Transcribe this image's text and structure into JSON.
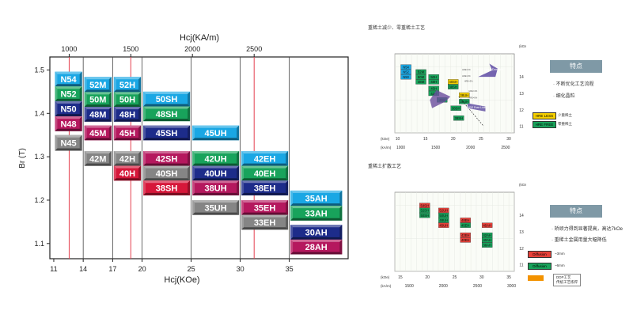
{
  "chart_data": [
    {
      "type": "bar",
      "title": "Hcj(KA/m)",
      "xlabel": "Hcj(KOe)",
      "ylabel": "Br (T)",
      "xlim": [
        10.6,
        41.0
      ],
      "ylim": [
        1.065,
        1.53
      ],
      "x_ticks": [
        "11",
        "14",
        "17",
        "20",
        "25",
        "30",
        "35"
      ],
      "x_tick_values": [
        11,
        14,
        17,
        20,
        25,
        30,
        35
      ],
      "top_ticks": [
        "1000",
        "1500",
        "2000",
        "2500"
      ],
      "top_tick_values_koe": [
        12.57,
        18.85,
        25.13,
        31.42
      ],
      "y_ticks": [
        "1.1",
        "1.2",
        "1.3",
        "1.4",
        "1.5"
      ],
      "y_tick_values": [
        1.1,
        1.2,
        1.3,
        1.4,
        1.5
      ],
      "red_lines_koe": [
        12.57,
        18.85,
        31.42
      ],
      "grades": [
        {
          "label": "N54",
          "x0": 11.0,
          "x1": 14.0,
          "br_top": 1.496,
          "br_bottom": 1.462,
          "color": "#1aa7e4"
        },
        {
          "label": "N52",
          "x0": 11.0,
          "x1": 14.0,
          "br_top": 1.462,
          "br_bottom": 1.428,
          "color": "#18a35b"
        },
        {
          "label": "N50",
          "x0": 11.0,
          "x1": 14.0,
          "br_top": 1.428,
          "br_bottom": 1.393,
          "color": "#1d2c8a"
        },
        {
          "label": "N48",
          "x0": 11.0,
          "x1": 14.0,
          "br_top": 1.393,
          "br_bottom": 1.359,
          "color": "#b5185e"
        },
        {
          "label": "N45",
          "x0": 11.0,
          "x1": 14.0,
          "br_top": 1.35,
          "br_bottom": 1.314,
          "color": "#858585"
        },
        {
          "label": "52M",
          "x0": 14.0,
          "x1": 17.0,
          "br_top": 1.484,
          "br_bottom": 1.449,
          "color": "#1aa7e4"
        },
        {
          "label": "50M",
          "x0": 14.0,
          "x1": 17.0,
          "br_top": 1.449,
          "br_bottom": 1.415,
          "color": "#18a35b"
        },
        {
          "label": "48M",
          "x0": 14.0,
          "x1": 17.0,
          "br_top": 1.415,
          "br_bottom": 1.381,
          "color": "#1d2c8a"
        },
        {
          "label": "45M",
          "x0": 14.0,
          "x1": 17.0,
          "br_top": 1.372,
          "br_bottom": 1.338,
          "color": "#b5185e"
        },
        {
          "label": "42M",
          "x0": 14.0,
          "x1": 17.0,
          "br_top": 1.313,
          "br_bottom": 1.279,
          "color": "#858585"
        },
        {
          "label": "52H",
          "x0": 17.0,
          "x1": 20.0,
          "br_top": 1.484,
          "br_bottom": 1.449,
          "color": "#1aa7e4"
        },
        {
          "label": "50H",
          "x0": 17.0,
          "x1": 20.0,
          "br_top": 1.449,
          "br_bottom": 1.415,
          "color": "#18a35b"
        },
        {
          "label": "48H",
          "x0": 17.0,
          "x1": 20.0,
          "br_top": 1.415,
          "br_bottom": 1.381,
          "color": "#1d2c8a"
        },
        {
          "label": "45H",
          "x0": 17.0,
          "x1": 20.0,
          "br_top": 1.372,
          "br_bottom": 1.338,
          "color": "#b5185e"
        },
        {
          "label": "42H",
          "x0": 17.0,
          "x1": 20.0,
          "br_top": 1.313,
          "br_bottom": 1.279,
          "color": "#858585"
        },
        {
          "label": "40H",
          "x0": 17.0,
          "x1": 20.0,
          "br_top": 1.279,
          "br_bottom": 1.245,
          "color": "#d6173a"
        },
        {
          "label": "50SH",
          "x0": 20.0,
          "x1": 25.0,
          "br_top": 1.45,
          "br_bottom": 1.416,
          "color": "#1aa7e4"
        },
        {
          "label": "48SH",
          "x0": 20.0,
          "x1": 25.0,
          "br_top": 1.416,
          "br_bottom": 1.382,
          "color": "#18a35b"
        },
        {
          "label": "45SH",
          "x0": 20.0,
          "x1": 25.0,
          "br_top": 1.372,
          "br_bottom": 1.338,
          "color": "#1d2c8a"
        },
        {
          "label": "42SH",
          "x0": 20.0,
          "x1": 25.0,
          "br_top": 1.313,
          "br_bottom": 1.279,
          "color": "#b5185e"
        },
        {
          "label": "40SH",
          "x0": 20.0,
          "x1": 25.0,
          "br_top": 1.279,
          "br_bottom": 1.245,
          "color": "#858585"
        },
        {
          "label": "38SH",
          "x0": 20.0,
          "x1": 25.0,
          "br_top": 1.245,
          "br_bottom": 1.211,
          "color": "#d6173a"
        },
        {
          "label": "45UH",
          "x0": 25.0,
          "x1": 30.0,
          "br_top": 1.372,
          "br_bottom": 1.338,
          "color": "#1aa7e4"
        },
        {
          "label": "42UH",
          "x0": 25.0,
          "x1": 30.0,
          "br_top": 1.313,
          "br_bottom": 1.279,
          "color": "#18a35b"
        },
        {
          "label": "40UH",
          "x0": 25.0,
          "x1": 30.0,
          "br_top": 1.279,
          "br_bottom": 1.245,
          "color": "#1d2c8a"
        },
        {
          "label": "38UH",
          "x0": 25.0,
          "x1": 30.0,
          "br_top": 1.245,
          "br_bottom": 1.211,
          "color": "#b5185e"
        },
        {
          "label": "35UH",
          "x0": 25.0,
          "x1": 30.0,
          "br_top": 1.2,
          "br_bottom": 1.166,
          "color": "#858585"
        },
        {
          "label": "42EH",
          "x0": 30.0,
          "x1": 35.0,
          "br_top": 1.313,
          "br_bottom": 1.279,
          "color": "#1aa7e4"
        },
        {
          "label": "40EH",
          "x0": 30.0,
          "x1": 35.0,
          "br_top": 1.279,
          "br_bottom": 1.245,
          "color": "#18a35b"
        },
        {
          "label": "38EH",
          "x0": 30.0,
          "x1": 35.0,
          "br_top": 1.245,
          "br_bottom": 1.211,
          "color": "#1d2c8a"
        },
        {
          "label": "35EH",
          "x0": 30.0,
          "x1": 35.0,
          "br_top": 1.2,
          "br_bottom": 1.166,
          "color": "#b5185e"
        },
        {
          "label": "33EH",
          "x0": 30.0,
          "x1": 35.0,
          "br_top": 1.166,
          "br_bottom": 1.132,
          "color": "#858585"
        },
        {
          "label": "35AH",
          "x0": 35.0,
          "x1": 40.5,
          "br_top": 1.222,
          "br_bottom": 1.187,
          "color": "#1aa7e4"
        },
        {
          "label": "33AH",
          "x0": 35.0,
          "x1": 40.5,
          "br_top": 1.187,
          "br_bottom": 1.153,
          "color": "#18a35b"
        },
        {
          "label": "30AH",
          "x0": 35.0,
          "x1": 40.5,
          "br_top": 1.143,
          "br_bottom": 1.109,
          "color": "#1d2c8a"
        },
        {
          "label": "28AH",
          "x0": 35.0,
          "x1": 40.5,
          "br_top": 1.109,
          "br_bottom": 1.075,
          "color": "#b5185e"
        }
      ]
    },
    {
      "type": "scatter",
      "title": "重稀土减少、零重稀土工艺",
      "x_ticks_koe": [
        "10",
        "15",
        "20",
        "25",
        "30"
      ],
      "x_ticks_kam": [
        "1000",
        "1500",
        "2000",
        "2500"
      ],
      "x_unit_koe": "(kOe)",
      "x_unit_kam": "(kA/m)",
      "y_ticks_kgs": [
        "14",
        "13",
        "12",
        "11"
      ],
      "y_ticks_t": [
        "1.5",
        "1.4",
        "1.3",
        "1.2",
        "1.1"
      ],
      "y_unit_kgs": "(kGs)",
      "y_unit_t": "(T)",
      "grades": [
        {
          "label": "N54",
          "hcj": 11.5,
          "br": 14.6,
          "color": "#1aa7e4"
        },
        {
          "label": "N52",
          "hcj": 11.5,
          "br": 14.3,
          "color": "#1aa7e4"
        },
        {
          "label": "N50",
          "hcj": 11.5,
          "br": 14.0,
          "color": "#1aa7e4"
        },
        {
          "label": "52M",
          "hcj": 14.2,
          "br": 14.3,
          "color": "#18a35b"
        },
        {
          "label": "50M",
          "hcj": 14.2,
          "br": 14.0,
          "color": "#18a35b"
        },
        {
          "label": "50H",
          "hcj": 16.5,
          "br": 14.0,
          "color": "#18a35b"
        },
        {
          "label": "48M",
          "hcj": 14.2,
          "br": 13.7,
          "color": "#18a35b"
        },
        {
          "label": "48H",
          "hcj": 16.5,
          "br": 13.7,
          "color": "#18a35b"
        },
        {
          "label": "45H",
          "hcj": 16.5,
          "br": 13.3,
          "color": "#18a35b"
        },
        {
          "label": "42H",
          "hcj": 16.5,
          "br": 13.0,
          "color": "#18a35b"
        },
        {
          "label": "40H",
          "hcj": 18.0,
          "br": 12.6,
          "color": "#18a35b"
        },
        {
          "label": "40SH",
          "hcj": 20.0,
          "br": 13.7,
          "color": "#f6d000"
        },
        {
          "label": "38SH",
          "hcj": 20.0,
          "br": 13.4,
          "color": "#18a35b"
        },
        {
          "label": "38UH",
          "hcj": 22.0,
          "br": 12.9,
          "color": "#f6d000"
        },
        {
          "label": "35UH",
          "hcj": 22.0,
          "br": 12.5,
          "color": "#18a35b"
        },
        {
          "label": "38SH",
          "hcj": 20.5,
          "br": 12.1,
          "color": "#18a35b"
        },
        {
          "label": "38SH",
          "hcj": 21.0,
          "br": 11.5,
          "color": "#18a35b"
        }
      ],
      "annotations": [
        "HRE Less Domain",
        "HRE Free Line",
        "HRE LESS",
        "HRE FREE",
        "少重稀土",
        "零重稀土",
        "HRE=1%",
        "HRE=2%",
        "HRE=3%",
        "HRE=4%",
        "HRE=5%"
      ]
    },
    {
      "type": "scatter",
      "title": "重稀土扩散工艺",
      "x_ticks_koe": [
        "15",
        "20",
        "25",
        "30",
        "35"
      ],
      "x_ticks_kam": [
        "1500",
        "2000",
        "2500",
        "3000"
      ],
      "x_unit_koe": "(kOe)",
      "x_unit_kam": "(kA/m)",
      "y_ticks_kgs": [
        "14",
        "13",
        "12",
        "11"
      ],
      "y_ticks_t": [
        "1.5",
        "1.4",
        "1.3",
        "1.2",
        "1.1"
      ],
      "y_unit_kgs": "(kGs)",
      "y_unit_t": "(T)",
      "grades": [
        {
          "label": "54SH",
          "hcj": 19.5,
          "br": 14.6,
          "color": "#e8413a"
        },
        {
          "label": "52SH",
          "hcj": 19.5,
          "br": 14.3,
          "color": "#18a35b"
        },
        {
          "label": "50SH",
          "hcj": 19.5,
          "br": 14.0,
          "color": "#18a35b"
        },
        {
          "label": "52UH",
          "hcj": 23.0,
          "br": 14.3,
          "color": "#e8413a"
        },
        {
          "label": "50UH",
          "hcj": 23.0,
          "br": 14.0,
          "color": "#18a35b"
        },
        {
          "label": "48UH",
          "hcj": 23.0,
          "br": 13.7,
          "color": "#18a35b"
        },
        {
          "label": "45UH",
          "hcj": 23.0,
          "br": 13.4,
          "color": "#e8413a"
        },
        {
          "label": "48EH",
          "hcj": 27.0,
          "br": 13.7,
          "color": "#e8413a"
        },
        {
          "label": "45EH",
          "hcj": 27.0,
          "br": 13.4,
          "color": "#18a35b"
        },
        {
          "label": "42EH",
          "hcj": 27.0,
          "br": 12.8,
          "color": "#e8413a"
        },
        {
          "label": "40EH",
          "hcj": 27.0,
          "br": 12.5,
          "color": "#e8413a"
        },
        {
          "label": "45AH",
          "hcj": 31.0,
          "br": 13.4,
          "color": "#e8413a"
        },
        {
          "label": "42AH",
          "hcj": 31.0,
          "br": 12.8,
          "color": "#18a35b"
        },
        {
          "label": "40AH",
          "hcj": 31.0,
          "br": 12.5,
          "color": "#18a35b"
        },
        {
          "label": "38AH",
          "hcj": 31.0,
          "br": 12.2,
          "color": "#18a35b"
        }
      ]
    }
  ],
  "panel1": {
    "title": "重稀土减少、零重稀土工艺",
    "feature_label": "特点",
    "bullets": [
      "· 不断优化工艺流程",
      "· 细化晶粒"
    ],
    "legend": [
      {
        "chip": "HRE LESS",
        "text": "少重稀土",
        "color": "#f6d000"
      },
      {
        "chip": "HRE FREE",
        "text": "零重稀土",
        "color": "#18a35b"
      }
    ]
  },
  "panel2": {
    "title": "重稀土扩散工艺",
    "feature_label": "特点",
    "bullets": [
      "· 矫顽力得到显著提高，高达7kOe",
      "· 重稀土金属用量大幅降低"
    ],
    "legend": [
      {
        "chip": "Diffusion",
        "text": "~3mm",
        "color": "#e8413a"
      },
      {
        "chip": "Diffusion",
        "text": "~6mm",
        "color": "#18a35b"
      },
      {
        "chip": "",
        "text": "DDP工艺\n传统工艺炼焊",
        "color": "#f39200"
      }
    ]
  }
}
